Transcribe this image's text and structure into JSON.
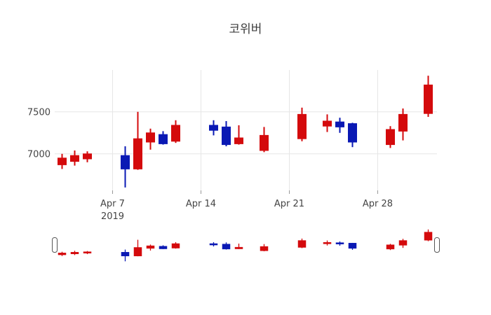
{
  "title": "코위버",
  "colors": {
    "up": "#d40a0c",
    "down": "#0a19b4",
    "grid": "#e6e6e6",
    "tick_mark": "#999999",
    "tick_text": "#444444",
    "title_text": "#3d3d3d",
    "slider_handle_fill": "#ffffff",
    "slider_handle_border": "#555555",
    "background": "#ffffff"
  },
  "y_axis": {
    "ticks": [
      {
        "label": "7500",
        "value": 7500
      },
      {
        "label": "7000",
        "value": 7000
      }
    ]
  },
  "x_axis": {
    "ticks": [
      {
        "label": "Apr 7",
        "sublabel": "2019",
        "t": 4
      },
      {
        "label": "Apr 14",
        "sublabel": "",
        "t": 11
      },
      {
        "label": "Apr 21",
        "sublabel": "",
        "t": 18
      },
      {
        "label": "Apr 28",
        "sublabel": "",
        "t": 25
      }
    ]
  },
  "range_slider": {
    "left_handle": "range-slider-left-handle",
    "right_handle": "range-slider-right-handle"
  },
  "chart_data": {
    "type": "candlestick",
    "title": "코위버",
    "increasing_color_name": "red",
    "decreasing_color_name": "blue",
    "xlim_t": [
      -0.583,
      29.694
    ],
    "ylim": [
      6565,
      7998
    ],
    "grid": true,
    "legend": "none",
    "rangeslider": true,
    "candles": [
      {
        "date": "Apr 3 2019",
        "t": 0,
        "open": 6870,
        "high": 7000,
        "low": 6820,
        "close": 6950
      },
      {
        "date": "Apr 4 2019",
        "t": 1,
        "open": 6910,
        "high": 7040,
        "low": 6860,
        "close": 6980
      },
      {
        "date": "Apr 5 2019",
        "t": 2,
        "open": 6940,
        "high": 7030,
        "low": 6900,
        "close": 7000
      },
      {
        "date": "Apr 8 2019",
        "t": 5,
        "open": 6980,
        "high": 7090,
        "low": 6600,
        "close": 6820
      },
      {
        "date": "Apr 9 2019",
        "t": 6,
        "open": 6820,
        "high": 7500,
        "low": 6810,
        "close": 7180
      },
      {
        "date": "Apr 10 2019",
        "t": 7,
        "open": 7140,
        "high": 7300,
        "low": 7050,
        "close": 7250
      },
      {
        "date": "Apr 11 2019",
        "t": 8,
        "open": 7230,
        "high": 7270,
        "low": 7110,
        "close": 7120
      },
      {
        "date": "Apr 12 2019",
        "t": 9,
        "open": 7150,
        "high": 7400,
        "low": 7130,
        "close": 7340
      },
      {
        "date": "Apr 15 2019",
        "t": 12,
        "open": 7340,
        "high": 7400,
        "low": 7220,
        "close": 7280
      },
      {
        "date": "Apr 16 2019",
        "t": 13,
        "open": 7320,
        "high": 7390,
        "low": 7090,
        "close": 7110
      },
      {
        "date": "Apr 17 2019",
        "t": 14,
        "open": 7120,
        "high": 7340,
        "low": 7110,
        "close": 7190
      },
      {
        "date": "Apr 19 2019",
        "t": 16,
        "open": 7040,
        "high": 7320,
        "low": 7020,
        "close": 7220
      },
      {
        "date": "Apr 22 2019",
        "t": 19,
        "open": 7180,
        "high": 7550,
        "low": 7150,
        "close": 7470
      },
      {
        "date": "Apr 24 2019",
        "t": 21,
        "open": 7330,
        "high": 7470,
        "low": 7260,
        "close": 7390
      },
      {
        "date": "Apr 25 2019",
        "t": 22,
        "open": 7380,
        "high": 7430,
        "low": 7250,
        "close": 7320
      },
      {
        "date": "Apr 26 2019",
        "t": 23,
        "open": 7360,
        "high": 7370,
        "low": 7080,
        "close": 7140
      },
      {
        "date": "Apr 29 2019",
        "t": 26,
        "open": 7110,
        "high": 7330,
        "low": 7070,
        "close": 7290
      },
      {
        "date": "Apr 30 2019",
        "t": 27,
        "open": 7270,
        "high": 7540,
        "low": 7160,
        "close": 7470
      },
      {
        "date": "May 2 2019",
        "t": 29,
        "open": 7480,
        "high": 7930,
        "low": 7440,
        "close": 7820
      }
    ]
  }
}
